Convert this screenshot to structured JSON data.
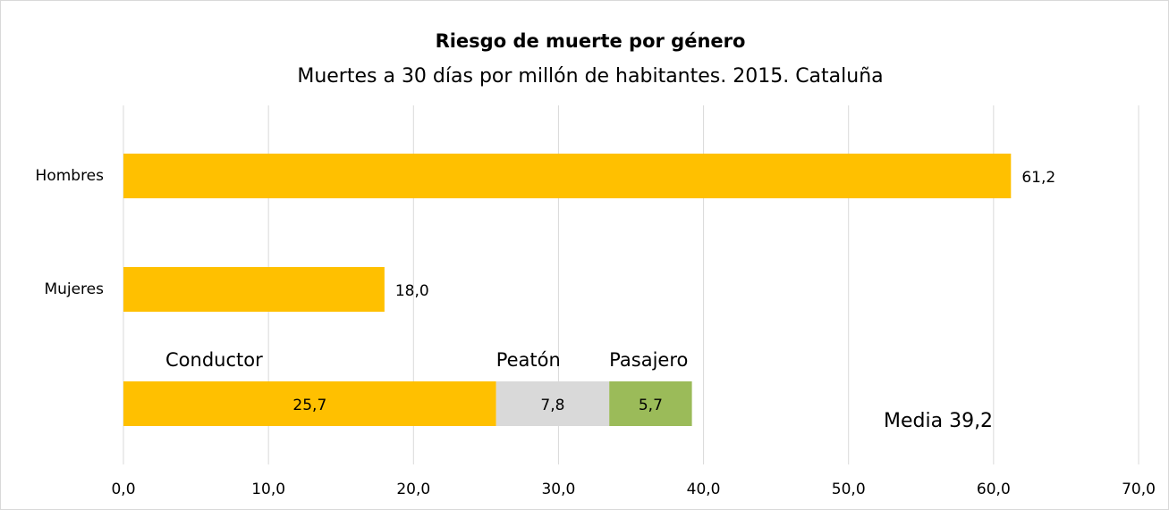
{
  "chart_data": {
    "type": "bar",
    "orientation": "horizontal",
    "title": "Riesgo de muerte por género",
    "subtitle": "Muertes a 30 días por millón de habitantes. 2015. Cataluña",
    "categories": [
      "Hombres",
      "Mujeres",
      null
    ],
    "series": [
      {
        "color": "#ffc000",
        "values": [
          61.2,
          18.0,
          null
        ],
        "value_labels": [
          "61,2",
          "18,0",
          null
        ],
        "label_position": "outside"
      },
      {
        "name": "Conductor",
        "color": "#ffc000",
        "values": [
          null,
          null,
          25.7
        ],
        "value_labels": [
          null,
          null,
          "25,7"
        ],
        "label_position": "center"
      },
      {
        "name": "Peatón",
        "color": "#d9d9d9",
        "values": [
          null,
          null,
          7.8
        ],
        "value_labels": [
          null,
          null,
          "7,8"
        ],
        "label_position": "center"
      },
      {
        "name": "Pasajero",
        "color": "#9bbb59",
        "values": [
          null,
          null,
          5.7
        ],
        "value_labels": [
          null,
          null,
          "5,7"
        ],
        "label_position": "center"
      }
    ],
    "annotations": [
      "Media 39,2"
    ],
    "xlim": [
      0,
      70
    ],
    "xticks": [
      {
        "value": 0,
        "label": "0,0"
      },
      {
        "value": 10,
        "label": "10,0"
      },
      {
        "value": 20,
        "label": "20,0"
      },
      {
        "value": 30,
        "label": "30,0"
      },
      {
        "value": 40,
        "label": "40,0"
      },
      {
        "value": 50,
        "label": "50,0"
      },
      {
        "value": 60,
        "label": "60,0"
      },
      {
        "value": 70,
        "label": "70,0"
      }
    ],
    "grid": true
  }
}
